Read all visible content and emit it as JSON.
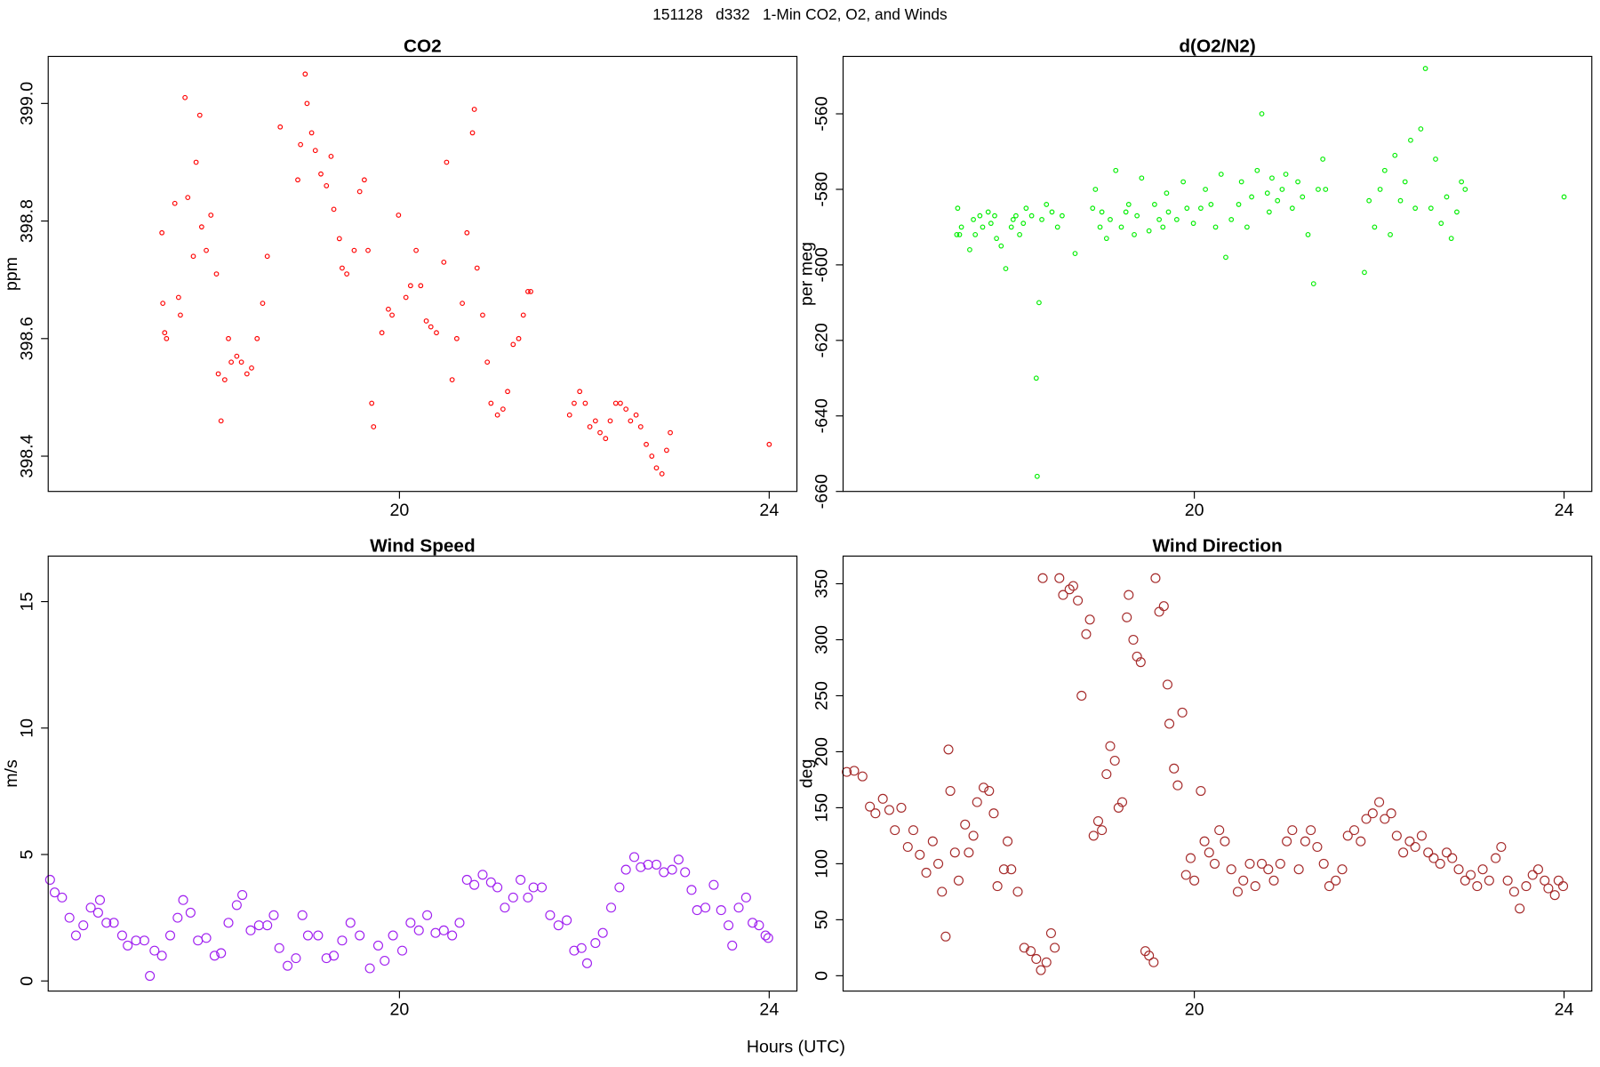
{
  "title": "151128   d332   1-Min CO2, O2, and Winds",
  "x_label": "Hours (UTC)",
  "chart_data": [
    {
      "type": "scatter",
      "title": "CO2",
      "y_label": "ppm",
      "color": "#ff0000",
      "xlim": [
        16.2,
        24.3
      ],
      "ylim": [
        398.34,
        399.08
      ],
      "xticks": [
        20,
        24
      ],
      "yticks": [
        398.4,
        398.6,
        398.8,
        {
          "value": 399,
          "label": "399.0"
        }
      ],
      "x": [
        17.43,
        17.44,
        17.46,
        17.48,
        17.57,
        17.61,
        17.63,
        17.68,
        17.71,
        17.77,
        17.8,
        17.84,
        17.86,
        17.91,
        17.96,
        18.02,
        18.04,
        18.07,
        18.11,
        18.15,
        18.18,
        18.24,
        18.29,
        18.35,
        18.4,
        18.46,
        18.52,
        18.57,
        18.71,
        18.9,
        18.93,
        18.98,
        19.0,
        19.05,
        19.09,
        19.15,
        19.21,
        19.26,
        19.29,
        19.35,
        19.38,
        19.43,
        19.51,
        19.57,
        19.62,
        19.66,
        19.7,
        19.72,
        19.81,
        19.88,
        19.92,
        19.99,
        20.07,
        20.12,
        20.18,
        20.23,
        20.29,
        20.34,
        20.4,
        20.48,
        20.51,
        20.57,
        20.62,
        20.68,
        20.73,
        20.79,
        20.81,
        20.84,
        20.9,
        20.95,
        20.99,
        21.06,
        21.12,
        21.17,
        21.23,
        21.29,
        21.34,
        21.39,
        21.42,
        21.84,
        21.89,
        21.95,
        22.01,
        22.06,
        22.12,
        22.17,
        22.23,
        22.28,
        22.34,
        22.39,
        22.45,
        22.5,
        22.56,
        22.61,
        22.67,
        22.73,
        22.78,
        22.84,
        22.89,
        22.93,
        24.0
      ],
      "values": [
        398.78,
        398.66,
        398.61,
        398.6,
        398.83,
        398.67,
        398.64,
        399.01,
        398.84,
        398.74,
        398.9,
        398.98,
        398.79,
        398.75,
        398.81,
        398.71,
        398.54,
        398.46,
        398.53,
        398.6,
        398.56,
        398.57,
        398.56,
        398.54,
        398.55,
        398.6,
        398.66,
        398.74,
        398.96,
        398.87,
        398.93,
        399.05,
        399.0,
        398.95,
        398.92,
        398.88,
        398.86,
        398.91,
        398.82,
        398.77,
        398.72,
        398.71,
        398.75,
        398.85,
        398.87,
        398.75,
        398.49,
        398.45,
        398.61,
        398.65,
        398.64,
        398.81,
        398.67,
        398.69,
        398.75,
        398.69,
        398.63,
        398.62,
        398.61,
        398.73,
        398.9,
        398.53,
        398.6,
        398.66,
        398.78,
        398.95,
        398.99,
        398.72,
        398.64,
        398.56,
        398.49,
        398.47,
        398.48,
        398.51,
        398.59,
        398.6,
        398.64,
        398.68,
        398.68,
        398.47,
        398.49,
        398.51,
        398.49,
        398.45,
        398.46,
        398.44,
        398.43,
        398.46,
        398.49,
        398.49,
        398.48,
        398.46,
        398.47,
        398.45,
        398.42,
        398.4,
        398.38,
        398.37,
        398.41,
        398.44,
        398.42
      ]
    },
    {
      "type": "scatter",
      "title": "d(O2/N2)",
      "y_label": "per meg",
      "color": "#00ee00",
      "xlim": [
        16.2,
        24.3
      ],
      "ylim": [
        -660,
        -544.8
      ],
      "xticks": [
        20,
        24
      ],
      "yticks": [
        -660,
        -640,
        -620,
        -600,
        -580,
        -560
      ],
      "x": [
        17.43,
        17.44,
        17.46,
        17.48,
        17.57,
        17.61,
        17.63,
        17.68,
        17.71,
        17.77,
        17.8,
        17.84,
        17.86,
        17.91,
        17.96,
        18.02,
        18.04,
        18.07,
        18.11,
        18.15,
        18.18,
        18.24,
        18.29,
        18.3,
        18.32,
        18.35,
        18.4,
        18.46,
        18.52,
        18.57,
        18.71,
        18.9,
        18.93,
        18.98,
        19.0,
        19.05,
        19.09,
        19.15,
        19.21,
        19.26,
        19.29,
        19.35,
        19.38,
        19.43,
        19.51,
        19.57,
        19.62,
        19.66,
        19.7,
        19.72,
        19.81,
        19.88,
        19.92,
        19.99,
        20.07,
        20.12,
        20.18,
        20.23,
        20.29,
        20.34,
        20.4,
        20.48,
        20.51,
        20.57,
        20.62,
        20.68,
        20.73,
        20.79,
        20.81,
        20.84,
        20.9,
        20.95,
        20.99,
        21.06,
        21.12,
        21.17,
        21.23,
        21.29,
        21.34,
        21.39,
        21.42,
        21.84,
        21.89,
        21.95,
        22.01,
        22.06,
        22.12,
        22.17,
        22.23,
        22.28,
        22.34,
        22.39,
        22.45,
        22.5,
        22.56,
        22.61,
        22.67,
        22.73,
        22.78,
        22.84,
        22.89,
        22.93,
        24.0
      ],
      "values": [
        -592,
        -585,
        -592,
        -590,
        -596,
        -588,
        -592,
        -587,
        -590,
        -586,
        -589,
        -587,
        -593,
        -595,
        -601,
        -590,
        -588,
        -587,
        -592,
        -589,
        -585,
        -587,
        -630,
        -656,
        -610,
        -588,
        -584,
        -586,
        -590,
        -587,
        -597,
        -585,
        -580,
        -590,
        -586,
        -593,
        -588,
        -575,
        -590,
        -586,
        -584,
        -592,
        -587,
        -577,
        -591,
        -584,
        -588,
        -590,
        -581,
        -586,
        -588,
        -578,
        -585,
        -589,
        -585,
        -580,
        -584,
        -590,
        -576,
        -598,
        -588,
        -584,
        -578,
        -590,
        -582,
        -575,
        -560,
        -581,
        -586,
        -577,
        -583,
        -580,
        -576,
        -585,
        -578,
        -582,
        -592,
        -605,
        -580,
        -572,
        -580,
        -602,
        -583,
        -590,
        -580,
        -575,
        -592,
        -571,
        -583,
        -578,
        -567,
        -585,
        -564,
        -548,
        -585,
        -572,
        -589,
        -582,
        -593,
        -586,
        -578,
        -580,
        -582
      ]
    },
    {
      "type": "scatter",
      "title": "Wind Speed",
      "y_label": "m/s",
      "color": "#a020f0",
      "xlim": [
        16.2,
        24.3
      ],
      "ylim": [
        -0.4,
        16.8
      ],
      "xticks": [
        20,
        24
      ],
      "yticks": [
        0,
        5,
        10,
        15
      ],
      "x": [
        16.22,
        16.27,
        16.35,
        16.43,
        16.5,
        16.58,
        16.66,
        16.74,
        16.76,
        16.83,
        16.91,
        17.0,
        17.06,
        17.15,
        17.24,
        17.3,
        17.35,
        17.43,
        17.52,
        17.6,
        17.66,
        17.74,
        17.82,
        17.91,
        18.0,
        18.07,
        18.15,
        18.24,
        18.3,
        18.39,
        18.48,
        18.57,
        18.64,
        18.7,
        18.79,
        18.88,
        18.95,
        19.01,
        19.12,
        19.21,
        19.29,
        19.38,
        19.47,
        19.57,
        19.68,
        19.77,
        19.84,
        19.93,
        20.03,
        20.12,
        20.21,
        20.3,
        20.39,
        20.48,
        20.57,
        20.65,
        20.73,
        20.81,
        20.9,
        20.99,
        21.06,
        21.14,
        21.23,
        21.31,
        21.39,
        21.45,
        21.54,
        21.63,
        21.72,
        21.81,
        21.89,
        21.97,
        22.03,
        22.12,
        22.2,
        22.29,
        22.38,
        22.45,
        22.54,
        22.61,
        22.69,
        22.78,
        22.86,
        22.95,
        23.02,
        23.09,
        23.16,
        23.22,
        23.31,
        23.4,
        23.48,
        23.56,
        23.6,
        23.67,
        23.75,
        23.82,
        23.89,
        23.96,
        23.99
      ],
      "values": [
        4.0,
        3.5,
        3.3,
        2.5,
        1.8,
        2.2,
        2.9,
        2.7,
        3.2,
        2.3,
        2.3,
        1.8,
        1.4,
        1.6,
        1.6,
        0.2,
        1.2,
        1.0,
        1.8,
        2.5,
        3.2,
        2.7,
        1.6,
        1.7,
        1.0,
        1.1,
        2.3,
        3.0,
        3.4,
        2.0,
        2.2,
        2.2,
        2.6,
        1.3,
        0.6,
        0.9,
        2.6,
        1.8,
        1.8,
        0.9,
        1.0,
        1.6,
        2.3,
        1.8,
        0.5,
        1.4,
        0.8,
        1.8,
        1.2,
        2.3,
        2.0,
        2.6,
        1.9,
        2.0,
        1.8,
        2.3,
        4.0,
        3.8,
        4.2,
        3.9,
        3.7,
        2.9,
        3.3,
        4.0,
        3.3,
        3.7,
        3.7,
        2.6,
        2.2,
        2.4,
        1.2,
        1.3,
        0.7,
        1.5,
        1.9,
        2.9,
        3.7,
        4.4,
        4.9,
        4.5,
        4.6,
        4.6,
        4.3,
        4.4,
        4.8,
        4.3,
        3.6,
        2.8,
        2.9,
        3.8,
        2.8,
        2.2,
        1.4,
        2.9,
        3.3,
        2.3,
        2.2,
        1.8,
        1.7
      ]
    },
    {
      "type": "scatter",
      "title": "Wind Direction",
      "y_label": "deg",
      "color": "#a52a2a",
      "xlim": [
        16.2,
        24.3
      ],
      "ylim": [
        -13.7,
        374.7
      ],
      "xticks": [
        20,
        24
      ],
      "yticks": [
        0,
        50,
        100,
        150,
        200,
        250,
        300,
        350
      ],
      "x": [
        16.24,
        16.32,
        16.41,
        16.49,
        16.55,
        16.63,
        16.7,
        16.76,
        16.83,
        16.9,
        16.96,
        17.03,
        17.1,
        17.17,
        17.23,
        17.27,
        17.31,
        17.34,
        17.36,
        17.41,
        17.45,
        17.52,
        17.56,
        17.61,
        17.65,
        17.72,
        17.78,
        17.83,
        17.87,
        17.94,
        17.98,
        18.02,
        18.09,
        18.16,
        18.23,
        18.29,
        18.34,
        18.36,
        18.4,
        18.45,
        18.49,
        18.54,
        18.58,
        18.65,
        18.69,
        18.74,
        18.78,
        18.83,
        18.87,
        18.91,
        18.96,
        19.0,
        19.05,
        19.09,
        19.14,
        19.18,
        19.22,
        19.27,
        19.29,
        19.34,
        19.38,
        19.42,
        19.47,
        19.51,
        19.56,
        19.58,
        19.62,
        19.67,
        19.71,
        19.73,
        19.78,
        19.82,
        19.87,
        19.91,
        19.96,
        20.0,
        20.07,
        20.11,
        20.16,
        20.22,
        20.27,
        20.33,
        20.4,
        20.47,
        20.53,
        20.6,
        20.66,
        20.73,
        20.8,
        20.86,
        20.93,
        21.0,
        21.06,
        21.13,
        21.2,
        21.26,
        21.33,
        21.4,
        21.46,
        21.53,
        21.6,
        21.66,
        21.73,
        21.8,
        21.86,
        21.93,
        22.0,
        22.06,
        22.13,
        22.19,
        22.26,
        22.33,
        22.39,
        22.46,
        22.53,
        22.59,
        22.66,
        22.73,
        22.79,
        22.86,
        22.93,
        22.99,
        23.06,
        23.12,
        23.19,
        23.26,
        23.32,
        23.39,
        23.46,
        23.52,
        23.59,
        23.66,
        23.72,
        23.79,
        23.83,
        23.9,
        23.94,
        23.99
      ],
      "values": [
        182,
        183,
        178,
        151,
        145,
        158,
        148,
        130,
        150,
        115,
        130,
        108,
        92,
        120,
        100,
        75,
        35,
        202,
        165,
        110,
        85,
        135,
        110,
        125,
        155,
        168,
        165,
        145,
        80,
        95,
        120,
        95,
        75,
        25,
        22,
        15,
        5,
        355,
        12,
        38,
        25,
        355,
        340,
        345,
        348,
        335,
        250,
        305,
        318,
        125,
        138,
        130,
        180,
        205,
        192,
        150,
        155,
        320,
        340,
        300,
        285,
        280,
        22,
        18,
        12,
        355,
        325,
        330,
        260,
        225,
        185,
        170,
        235,
        90,
        105,
        85,
        165,
        120,
        110,
        100,
        130,
        120,
        95,
        75,
        85,
        100,
        80,
        100,
        95,
        85,
        100,
        120,
        130,
        95,
        120,
        130,
        115,
        100,
        80,
        85,
        95,
        125,
        130,
        120,
        140,
        145,
        155,
        140,
        145,
        125,
        110,
        120,
        115,
        125,
        110,
        105,
        100,
        110,
        105,
        95,
        85,
        90,
        80,
        95,
        85,
        105,
        115,
        85,
        75,
        60,
        80,
        90,
        95,
        85,
        78,
        72,
        85,
        80
      ]
    }
  ]
}
